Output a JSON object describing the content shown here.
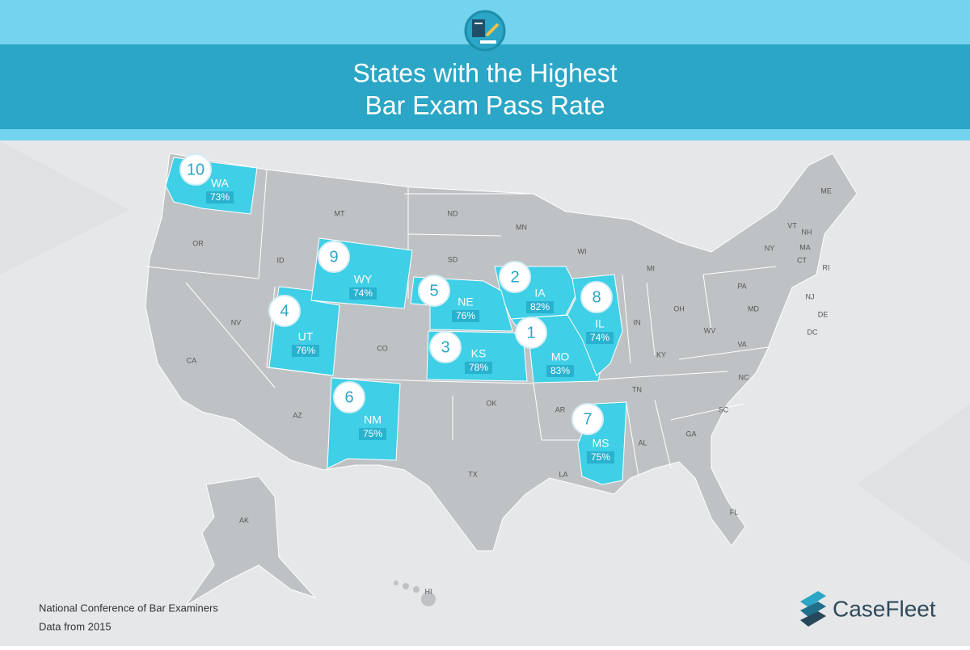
{
  "header": {
    "title_lines": [
      "States with the Highest",
      "Bar Exam Pass Rate"
    ]
  },
  "highlighted_states": [
    {
      "rank": 1,
      "state": "MO",
      "rate": "83%"
    },
    {
      "rank": 2,
      "state": "IA",
      "rate": "82%"
    },
    {
      "rank": 3,
      "state": "KS",
      "rate": "78%"
    },
    {
      "rank": 4,
      "state": "UT",
      "rate": "76%"
    },
    {
      "rank": 5,
      "state": "NE",
      "rate": "76%"
    },
    {
      "rank": 6,
      "state": "NM",
      "rate": "75%"
    },
    {
      "rank": 7,
      "state": "MS",
      "rate": "75%"
    },
    {
      "rank": 8,
      "state": "IL",
      "rate": "74%"
    },
    {
      "rank": 9,
      "state": "WY",
      "rate": "74%"
    },
    {
      "rank": 10,
      "state": "WA",
      "rate": "73%"
    }
  ],
  "other_states": [
    "MT",
    "ND",
    "MN",
    "WI",
    "MI",
    "OR",
    "ID",
    "SD",
    "NV",
    "CA",
    "CO",
    "AZ",
    "OK",
    "TX",
    "AR",
    "LA",
    "TN",
    "AL",
    "GA",
    "SC",
    "NC",
    "KY",
    "VA",
    "WV",
    "OH",
    "IN",
    "PA",
    "NY",
    "ME",
    "VT",
    "NH",
    "MA",
    "CT",
    "RI",
    "NJ",
    "DE",
    "MD",
    "DC",
    "FL",
    "AK",
    "HI"
  ],
  "footer": {
    "source_lines": [
      "National Conference of Bar Examiners",
      "Data from 2015"
    ],
    "logo": "CaseFleet"
  }
}
